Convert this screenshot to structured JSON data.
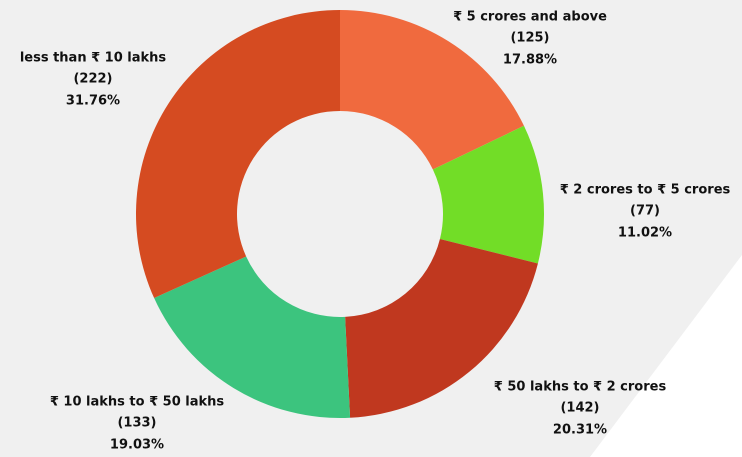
{
  "chart_data": {
    "type": "donut",
    "categories": [
      "₹ 5 crores and above",
      "₹ 2 crores to ₹ 5 crores",
      "₹ 50 lakhs to ₹ 2 crores",
      "₹ 10 lakhs to ₹ 50 lakhs",
      "less than ₹ 10 lakhs"
    ],
    "values": [
      125,
      77,
      142,
      133,
      222
    ],
    "value_labels": [
      "(125)",
      "(77)",
      "(142)",
      "(133)",
      "(222)"
    ],
    "percentages": [
      17.88,
      11.02,
      20.31,
      19.03,
      31.76
    ],
    "percentage_labels": [
      "17.88%",
      "11.02%",
      "20.31%",
      "19.03%",
      "31.76%"
    ],
    "colors": [
      "#f06a3e",
      "#72dd27",
      "#c0381f",
      "#3cc47e",
      "#d54b21"
    ]
  }
}
